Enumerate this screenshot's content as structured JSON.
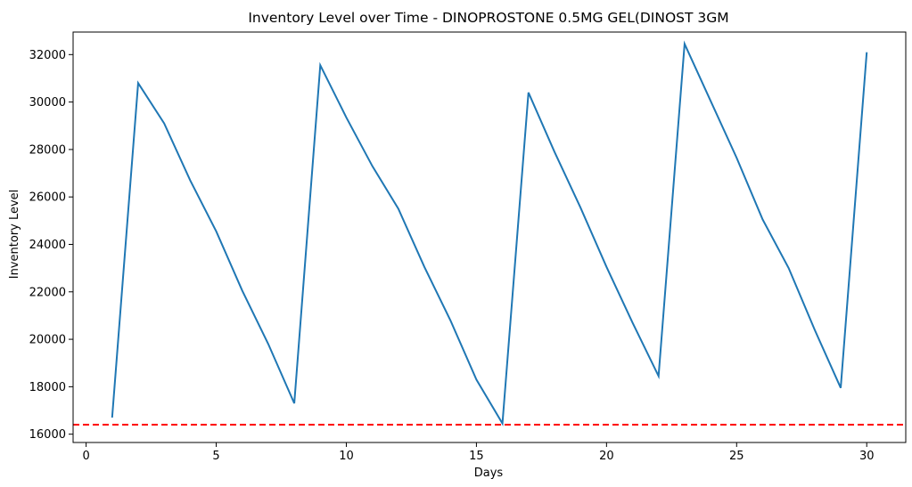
{
  "chart_data": {
    "type": "line",
    "title": "Inventory Level over Time - DINOPROSTONE 0.5MG GEL(DINOST 3GM",
    "xlabel": "Days",
    "ylabel": "Inventory Level",
    "xlim": [
      -0.5,
      31.5
    ],
    "ylim": [
      15650,
      32950
    ],
    "x_ticks": [
      0,
      5,
      10,
      15,
      20,
      25,
      30
    ],
    "y_ticks": [
      16000,
      18000,
      20000,
      22000,
      24000,
      26000,
      28000,
      30000,
      32000
    ],
    "grid": false,
    "series": [
      {
        "color": "#1f77b4",
        "x": [
          1,
          2,
          3,
          4,
          5,
          6,
          7,
          8,
          9,
          10,
          11,
          12,
          13,
          14,
          15,
          16,
          17,
          18,
          19,
          20,
          21,
          22,
          23,
          24,
          25,
          26,
          27,
          28,
          29,
          30
        ],
        "y": [
          16700,
          30800,
          29100,
          26700,
          24550,
          22050,
          19800,
          17300,
          31550,
          29350,
          27300,
          25500,
          23050,
          20800,
          18300,
          16450,
          30400,
          27900,
          25550,
          23050,
          20700,
          18450,
          32450,
          30050,
          27650,
          25050,
          23000,
          20400,
          17950,
          32100
        ]
      }
    ],
    "reference_line": {
      "y": 16400,
      "color": "#ff0000",
      "style": "dashed"
    }
  }
}
